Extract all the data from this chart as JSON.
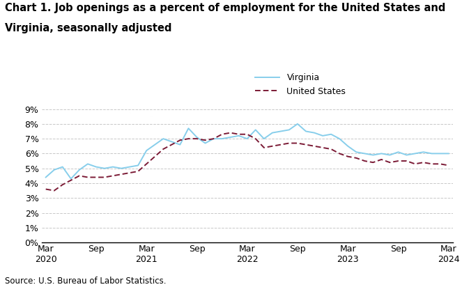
{
  "title_line1": "Chart 1. Job openings as a percent of employment for the United States and",
  "title_line2": "Virginia, seasonally adjusted",
  "source": "Source: U.S. Bureau of Labor Statistics.",
  "virginia": [
    4.4,
    4.9,
    5.1,
    4.3,
    4.9,
    5.3,
    5.1,
    5.0,
    5.1,
    5.0,
    5.1,
    5.2,
    6.2,
    6.6,
    7.0,
    6.8,
    6.6,
    7.7,
    7.1,
    6.7,
    7.0,
    7.0,
    7.1,
    7.2,
    7.0,
    7.6,
    7.0,
    7.4,
    7.5,
    7.6,
    8.0,
    7.5,
    7.4,
    7.2,
    7.3,
    7.0,
    6.5,
    6.1,
    6.0,
    5.9,
    6.0,
    5.9,
    6.1,
    5.9,
    6.0,
    6.1,
    6.0,
    6.0,
    6.0
  ],
  "us": [
    3.6,
    3.5,
    3.9,
    4.2,
    4.5,
    4.4,
    4.4,
    4.4,
    4.5,
    4.6,
    4.7,
    4.8,
    5.3,
    5.8,
    6.3,
    6.6,
    6.9,
    7.0,
    7.0,
    6.9,
    7.0,
    7.3,
    7.4,
    7.3,
    7.3,
    7.0,
    6.4,
    6.5,
    6.6,
    6.7,
    6.7,
    6.6,
    6.5,
    6.4,
    6.3,
    6.0,
    5.8,
    5.7,
    5.5,
    5.4,
    5.6,
    5.4,
    5.5,
    5.5,
    5.3,
    5.4,
    5.3,
    5.3,
    5.2
  ],
  "virginia_color": "#87CEEB",
  "us_color": "#7B1A35",
  "ylim": [
    0,
    9
  ],
  "yticks": [
    0,
    1,
    2,
    3,
    4,
    5,
    6,
    7,
    8,
    9
  ],
  "xtick_positions": [
    0,
    6,
    12,
    18,
    24,
    30,
    36,
    42,
    48
  ],
  "xtick_labels_top": [
    "Mar",
    "Sep",
    "Mar",
    "Sep",
    "Mar",
    "Sep",
    "Mar",
    "Sep",
    "Mar"
  ],
  "xtick_years": [
    "2020",
    "",
    "2021",
    "",
    "2022",
    "",
    "2023",
    "",
    "2024"
  ],
  "background_color": "#ffffff",
  "grid_color": "#c8c8c8",
  "title_fontsize": 10.5,
  "tick_fontsize": 9,
  "legend_fontsize": 9,
  "source_fontsize": 8.5
}
